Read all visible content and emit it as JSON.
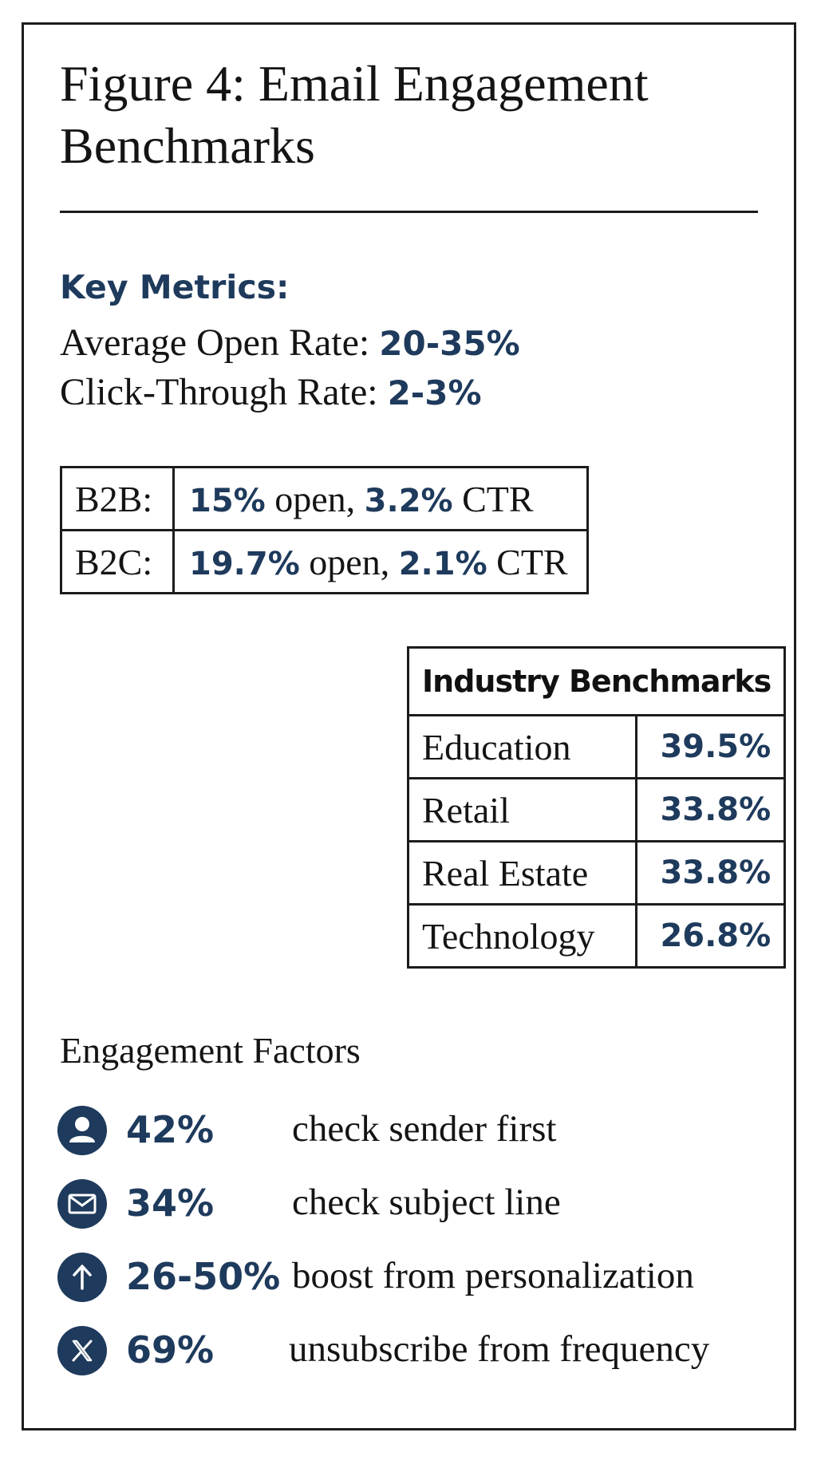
{
  "title_line1": "Figure 4: Email Engagement",
  "title_line2": "Benchmarks",
  "key_metrics": {
    "heading": "Key Metrics:",
    "open_rate_label": "Average Open Rate: ",
    "open_rate_value": "20-35%",
    "ctr_label": "Click-Through Rate: ",
    "ctr_value": "2-3%"
  },
  "segments": [
    {
      "label": "B2B:",
      "open": "15%",
      "open_suffix": " open, ",
      "ctr": "3.2%",
      "ctr_suffix": " CTR"
    },
    {
      "label": "B2C:",
      "open": "19.7%",
      "open_suffix": " open, ",
      "ctr": "2.1%",
      "ctr_suffix": " CTR"
    }
  ],
  "industry": {
    "heading": "Industry Benchmarks",
    "rows": [
      {
        "name": "Education",
        "value": "39.5%"
      },
      {
        "name": "Retail",
        "value": "33.8%"
      },
      {
        "name": "Real Estate",
        "value": "33.8%"
      },
      {
        "name": "Technology",
        "value": "26.8%"
      }
    ]
  },
  "factors": {
    "heading": "Engagement Factors",
    "items": [
      {
        "icon": "person-icon",
        "pct": "42%",
        "text": "check sender first"
      },
      {
        "icon": "envelope-icon",
        "pct": "34%",
        "text": "check subject line"
      },
      {
        "icon": "arrow-up-icon",
        "pct": "26-50%",
        "text": "boost from personalization"
      },
      {
        "icon": "x-icon",
        "pct": "69%",
        "text": "unsubscribe from frequency"
      }
    ]
  },
  "colors": {
    "accent": "#1e3a5c",
    "border": "#1c1c1c",
    "text": "#141414"
  }
}
